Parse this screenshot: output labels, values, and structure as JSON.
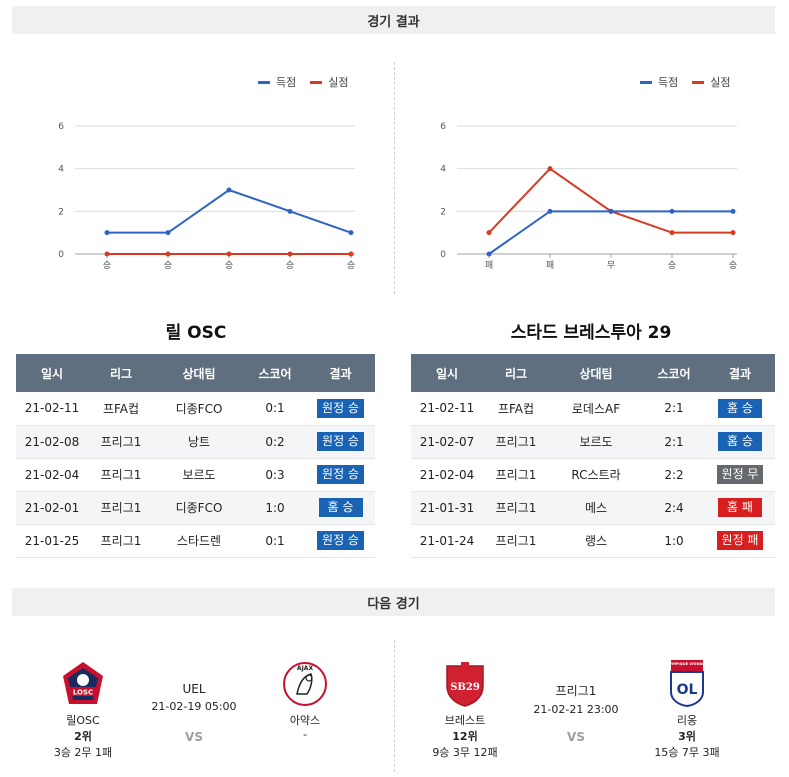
{
  "section_results_title": "경기 결과",
  "section_next_title": "다음 경기",
  "legend": {
    "scored": "득점",
    "conceded": "실점"
  },
  "colors": {
    "scored": "#2f64c5",
    "conceded": "#d83a22",
    "win_home": "#1a63b4",
    "loss": "#d71f1f",
    "draw": "#666a6e"
  },
  "chart_data": [
    {
      "type": "line",
      "categories": [
        "승",
        "승",
        "승",
        "승",
        "승"
      ],
      "yticks": [
        0,
        2,
        4,
        6
      ],
      "ylim": [
        0,
        6
      ],
      "grid": true,
      "legend_position": "top-right",
      "series": [
        {
          "name": "득점",
          "values": [
            1,
            1,
            3,
            2,
            1
          ]
        },
        {
          "name": "실점",
          "values": [
            0,
            0,
            0,
            0,
            0
          ]
        }
      ]
    },
    {
      "type": "line",
      "categories": [
        "패",
        "패",
        "무",
        "승",
        "승"
      ],
      "yticks": [
        0,
        2,
        4,
        6
      ],
      "ylim": [
        0,
        6
      ],
      "grid": true,
      "legend_position": "top-right",
      "series": [
        {
          "name": "득점",
          "values": [
            0,
            2,
            2,
            2,
            2
          ]
        },
        {
          "name": "실점",
          "values": [
            1,
            4,
            2,
            1,
            1
          ]
        }
      ]
    }
  ],
  "teams": [
    {
      "title": "릴 OSC",
      "headers": [
        "일시",
        "리그",
        "상대팀",
        "스코어",
        "결과"
      ],
      "rows": [
        {
          "date": "21-02-11",
          "league": "프FA컵",
          "opponent": "디종FCO",
          "score": "0:1",
          "result": "원정 승",
          "color": "blue"
        },
        {
          "date": "21-02-08",
          "league": "프리그1",
          "opponent": "낭트",
          "score": "0:2",
          "result": "원정 승",
          "color": "blue"
        },
        {
          "date": "21-02-04",
          "league": "프리그1",
          "opponent": "보르도",
          "score": "0:3",
          "result": "원정 승",
          "color": "blue"
        },
        {
          "date": "21-02-01",
          "league": "프리그1",
          "opponent": "디종FCO",
          "score": "1:0",
          "result": "홈 승",
          "color": "blue"
        },
        {
          "date": "21-01-25",
          "league": "프리그1",
          "opponent": "스타드렌",
          "score": "0:1",
          "result": "원정 승",
          "color": "blue"
        }
      ]
    },
    {
      "title": "스타드 브레스투아 29",
      "headers": [
        "일시",
        "리그",
        "상대팀",
        "스코어",
        "결과"
      ],
      "rows": [
        {
          "date": "21-02-11",
          "league": "프FA컵",
          "opponent": "로데스AF",
          "score": "2:1",
          "result": "홈 승",
          "color": "blue"
        },
        {
          "date": "21-02-07",
          "league": "프리그1",
          "opponent": "보르도",
          "score": "2:1",
          "result": "홈 승",
          "color": "blue"
        },
        {
          "date": "21-02-04",
          "league": "프리그1",
          "opponent": "RC스트라",
          "score": "2:2",
          "result": "원정 무",
          "color": "gray"
        },
        {
          "date": "21-01-31",
          "league": "프리그1",
          "opponent": "메스",
          "score": "2:4",
          "result": "홈 패",
          "color": "red"
        },
        {
          "date": "21-01-24",
          "league": "프리그1",
          "opponent": "랭스",
          "score": "1:0",
          "result": "원정 패",
          "color": "red"
        }
      ]
    }
  ],
  "next_matches": [
    {
      "league": "UEL",
      "datetime": "21-02-19 05:00",
      "vs": "VS",
      "home": {
        "name": "릴OSC",
        "rank": "2위",
        "record": "3승 2무 1패",
        "logo_text": "LOSC",
        "logo_icon": "lille-crest-icon"
      },
      "away": {
        "name": "아약스",
        "rank": "-",
        "record": "",
        "logo_text": "AJAX",
        "logo_icon": "ajax-crest-icon"
      }
    },
    {
      "league": "프리그1",
      "datetime": "21-02-21 23:00",
      "vs": "VS",
      "home": {
        "name": "브레스트",
        "rank": "12위",
        "record": "9승 3무 12패",
        "logo_text": "SB29",
        "logo_icon": "brest-crest-icon"
      },
      "away": {
        "name": "리옹",
        "rank": "3위",
        "record": "15승 7무 3패",
        "logo_text": "OL",
        "logo_top": "OLYMPIQUE LYONNAIS",
        "logo_icon": "lyon-crest-icon"
      }
    }
  ]
}
